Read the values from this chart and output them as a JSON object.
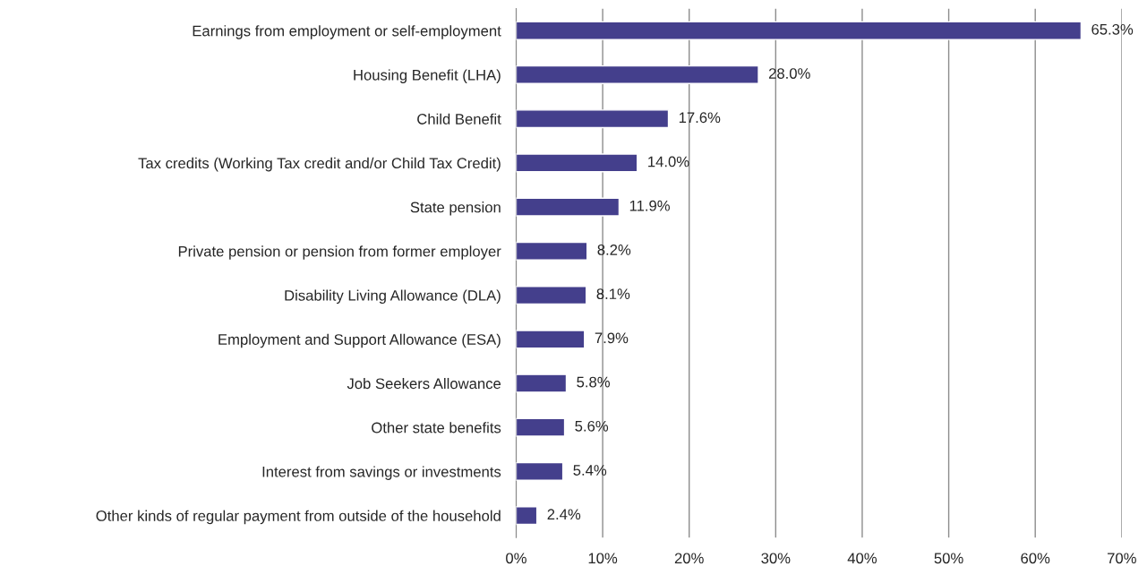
{
  "chart_data": {
    "type": "bar",
    "orientation": "horizontal",
    "categories": [
      "Earnings from employment or self-employment",
      "Housing Benefit (LHA)",
      "Child Benefit",
      "Tax credits (Working Tax credit and/or Child Tax Credit)",
      "State pension",
      "Private pension or pension from former employer",
      "Disability Living Allowance (DLA)",
      "Employment and Support Allowance (ESA)",
      "Job Seekers Allowance",
      "Other state benefits",
      "Interest from savings or investments",
      "Other kinds of regular payment from outside of the household"
    ],
    "values": [
      65.3,
      28.0,
      17.6,
      14.0,
      11.9,
      8.2,
      8.1,
      7.9,
      5.8,
      5.6,
      5.4,
      2.4
    ],
    "value_labels": [
      "65.3%",
      "28.0%",
      "17.6%",
      "14.0%",
      "11.9%",
      "8.2%",
      "8.1%",
      "7.9%",
      "5.8%",
      "5.6%",
      "5.4%",
      "2.4%"
    ],
    "color": "#443f8c",
    "xlim": [
      0,
      70
    ],
    "xticks": [
      {
        "value": 0,
        "label": "0%"
      },
      {
        "value": 10,
        "label": "10%"
      },
      {
        "value": 20,
        "label": "20%"
      },
      {
        "value": 30,
        "label": "30%"
      },
      {
        "value": 40,
        "label": "40%"
      },
      {
        "value": 50,
        "label": "50%"
      },
      {
        "value": 60,
        "label": "60%"
      },
      {
        "value": 70,
        "label": "70%"
      }
    ],
    "grid": "x",
    "legend": false
  }
}
